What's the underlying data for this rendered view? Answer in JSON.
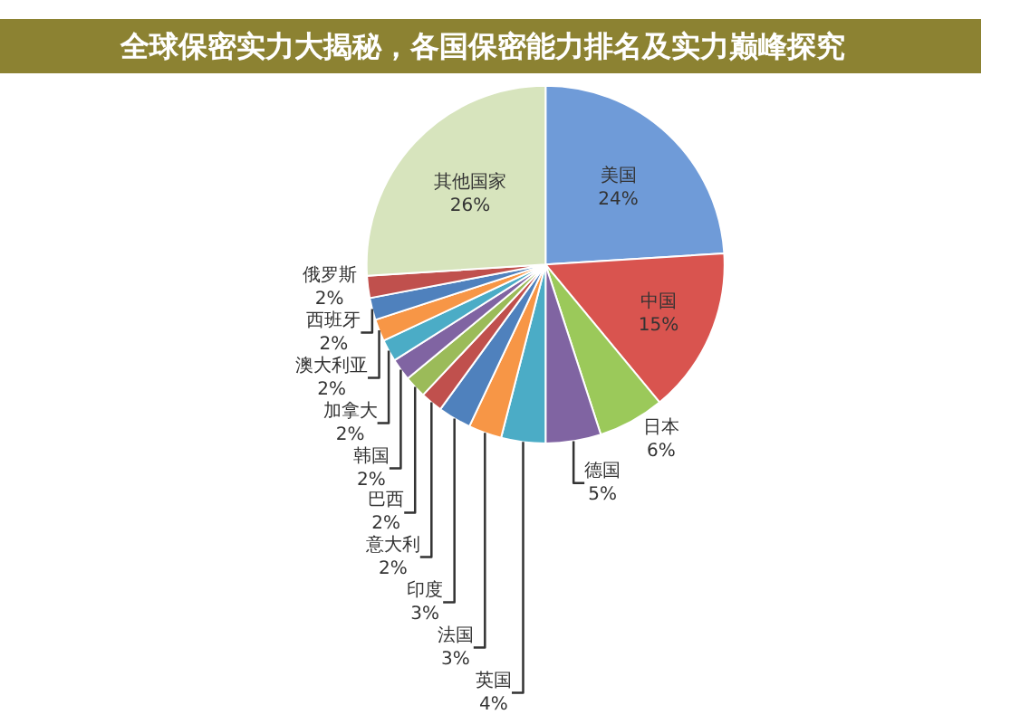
{
  "chart_data": {
    "type": "pie",
    "title": "全球保密实力大揭秘，各国保密能力排名及实力巅峰探究",
    "categories": [
      "美国",
      "中国",
      "日本",
      "德国",
      "英国",
      "法国",
      "印度",
      "意大利",
      "巴西",
      "韩国",
      "加拿大",
      "澳大利亚",
      "西班牙",
      "俄罗斯",
      "其他国家"
    ],
    "values": [
      24,
      15,
      6,
      5,
      4,
      3,
      3,
      2,
      2,
      2,
      2,
      2,
      2,
      2,
      26
    ],
    "value_labels": [
      "24%",
      "15%",
      "6%",
      "5%",
      "4%",
      "3%",
      "3%",
      "2%",
      "2%",
      "2%",
      "2%",
      "2%",
      "2%",
      "2%",
      "26%"
    ],
    "colors": [
      "#6f9bd8",
      "#d9544f",
      "#9bc95a",
      "#8064a2",
      "#4bacc6",
      "#f79646",
      "#4f81bd",
      "#c0504d",
      "#9bbb59",
      "#8064a2",
      "#4bacc6",
      "#f79646",
      "#4f81bd",
      "#c0504d",
      "#d7e4bd"
    ],
    "legend": false
  }
}
